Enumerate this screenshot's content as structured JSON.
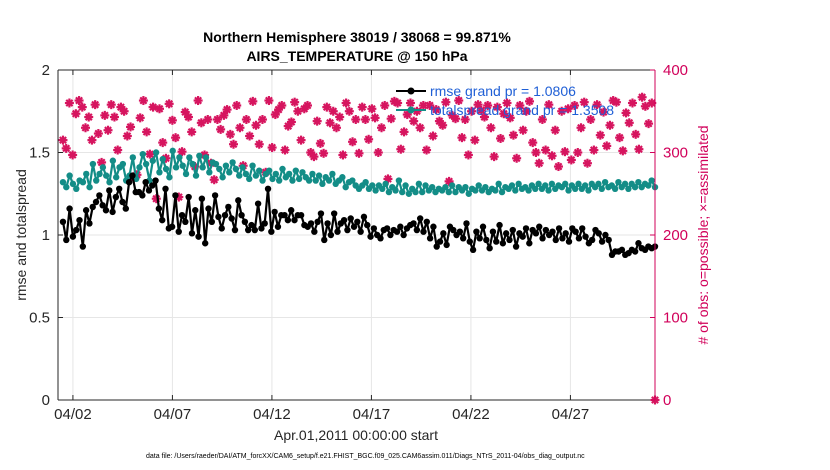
{
  "chart_data": {
    "type": "line",
    "title": "Northern Hemisphere 38019 / 38068 = 99.871%",
    "subtitle": "AIRS_TEMPERATURE @ 150 hPa",
    "xlabel": "Apr.01,2011 00:00:00 start",
    "ylabel_left": "rmse and totalspread",
    "ylabel_right": "# of obs: o=possible; ×=assimilated",
    "ylim_left": [
      0,
      2
    ],
    "ylim_right": [
      0,
      400
    ],
    "yticks_left": [
      "0",
      "0.5",
      "1",
      "1.5",
      "2"
    ],
    "yticks_right": [
      "0",
      "100",
      "200",
      "300",
      "400"
    ],
    "xticks": [
      {
        "day": 1.5,
        "label": "04/02"
      },
      {
        "day": 6.5,
        "label": "04/07"
      },
      {
        "day": 11.5,
        "label": "04/12"
      },
      {
        "day": 16.5,
        "label": "04/17"
      },
      {
        "day": 21.5,
        "label": "04/22"
      },
      {
        "day": 26.5,
        "label": "04/27"
      }
    ],
    "xlim_days": [
      0.75,
      30.75
    ],
    "grid": true,
    "legend_position": "top-right",
    "colors": {
      "rmse": "#000000",
      "spread": "#138d87",
      "obs": "#d6155f",
      "right_axis": "#d1005a",
      "legend_text": "#1f5fd6"
    },
    "series": [
      {
        "name": "rmse grand pr = 1.0806",
        "axis": "left",
        "marker": "filled-circle",
        "values": [
          1.08,
          0.97,
          1.16,
          0.99,
          1.03,
          1.09,
          0.93,
          1.15,
          1.07,
          1.17,
          1.2,
          1.24,
          1.18,
          1.15,
          1.27,
          1.14,
          1.23,
          1.28,
          1.2,
          1.16,
          1.32,
          1.36,
          1.26,
          1.26,
          1.24,
          1.32,
          1.27,
          1.3,
          1.33,
          1.16,
          1.09,
          1.28,
          1.04,
          1.05,
          1.24,
          1.02,
          1.12,
          1.08,
          1.23,
          1.01,
          1.15,
          0.99,
          1.22,
          0.95,
          1.16,
          1.08,
          1.24,
          1.11,
          1.04,
          1.12,
          1.17,
          1.1,
          1.03,
          1.21,
          1.12,
          1.08,
          1.03,
          1.06,
          1.03,
          1.19,
          1.04,
          1.07,
          1.28,
          1.02,
          1.14,
          1.05,
          1.12,
          1.12,
          1.09,
          1.15,
          1.09,
          1.12,
          1.12,
          1.06,
          1.05,
          1.07,
          1.02,
          1.08,
          1.13,
          0.97,
          1.07,
          1.0,
          1.13,
          1.02,
          1.07,
          1.09,
          1.03,
          1.1,
          1.05,
          1.08,
          1.02,
          1.11,
          1.06,
          0.99,
          1.04,
          1.0,
          0.98,
          1.03,
          1.04,
          1.0,
          1.03,
          1.02,
          1.05,
          1.0,
          1.04,
          1.06,
          1.07,
          1.03,
          1.1,
          1.02,
          1.08,
          0.98,
          1.05,
          0.93,
          0.96,
          1.01,
          0.94,
          1.05,
          1.03,
          1.0,
          1.02,
          0.98,
          1.07,
          0.96,
          0.91,
          1.02,
          0.98,
          1.05,
          0.97,
          0.92,
          1.02,
          0.96,
          1.06,
          0.95,
          1.01,
          0.97,
          1.03,
          0.93,
          1.01,
          0.99,
          1.04,
          0.95,
          1.03,
          1.01,
          1.05,
          0.98,
          1.03,
          1.0,
          1.02,
          0.97,
          1.04,
          0.98,
          1.01,
          0.96,
          1.04,
          1.02,
          0.98,
          1.04,
          0.99,
          0.95,
          0.97,
          1.03,
          1.01,
          0.96,
          1.0,
          0.97,
          0.88,
          0.9,
          0.9,
          0.91,
          0.88,
          0.89,
          0.91,
          0.9,
          0.95,
          0.92,
          0.91,
          0.93,
          0.92,
          0.93
        ]
      },
      {
        "name": "totalspread grand pr = 1.3508",
        "axis": "left",
        "marker": "filled-circle",
        "values": [
          1.32,
          1.29,
          1.36,
          1.31,
          1.28,
          1.33,
          1.32,
          1.37,
          1.29,
          1.43,
          1.33,
          1.37,
          1.41,
          1.36,
          1.32,
          1.45,
          1.35,
          1.41,
          1.43,
          1.33,
          1.36,
          1.47,
          1.34,
          1.41,
          1.49,
          1.43,
          1.33,
          1.45,
          1.5,
          1.38,
          1.46,
          1.4,
          1.35,
          1.51,
          1.41,
          1.47,
          1.42,
          1.37,
          1.47,
          1.43,
          1.36,
          1.48,
          1.41,
          1.47,
          1.38,
          1.44,
          1.43,
          1.4,
          1.35,
          1.42,
          1.38,
          1.44,
          1.4,
          1.36,
          1.41,
          1.37,
          1.34,
          1.42,
          1.36,
          1.39,
          1.33,
          1.37,
          1.39,
          1.34,
          1.37,
          1.33,
          1.4,
          1.35,
          1.37,
          1.33,
          1.39,
          1.34,
          1.38,
          1.35,
          1.33,
          1.37,
          1.33,
          1.36,
          1.31,
          1.35,
          1.33,
          1.37,
          1.31,
          1.33,
          1.35,
          1.29,
          1.32,
          1.33,
          1.3,
          1.28,
          1.3,
          1.32,
          1.28,
          1.3,
          1.27,
          1.3,
          1.28,
          1.31,
          1.26,
          1.29,
          1.27,
          1.33,
          1.26,
          1.3,
          1.25,
          1.28,
          1.26,
          1.31,
          1.26,
          1.3,
          1.27,
          1.29,
          1.26,
          1.28,
          1.27,
          1.29,
          1.26,
          1.3,
          1.26,
          1.29,
          1.27,
          1.29,
          1.25,
          1.28,
          1.27,
          1.3,
          1.27,
          1.29,
          1.26,
          1.28,
          1.27,
          1.31,
          1.26,
          1.29,
          1.28,
          1.3,
          1.27,
          1.31,
          1.28,
          1.29,
          1.27,
          1.3,
          1.28,
          1.31,
          1.28,
          1.3,
          1.27,
          1.31,
          1.28,
          1.3,
          1.29,
          1.31,
          1.27,
          1.3,
          1.28,
          1.31,
          1.28,
          1.3,
          1.27,
          1.31,
          1.29,
          1.31,
          1.28,
          1.32,
          1.29,
          1.3,
          1.28,
          1.32,
          1.29,
          1.31,
          1.28,
          1.31,
          1.29,
          1.32,
          1.29,
          1.31,
          1.3,
          1.33,
          1.29
        ]
      },
      {
        "name": "# of obs: o=possible; ×=assimilated",
        "axis": "right",
        "marker": "star",
        "values": [
          315,
          305,
          360,
          297,
          347,
          363,
          355,
          330,
          343,
          315,
          358,
          323,
          288,
          345,
          327,
          358,
          343,
          303,
          355,
          350,
          320,
          331,
          269,
          273,
          342,
          363,
          325,
          298,
          355,
          244,
          353,
          312,
          293,
          359,
          339,
          318,
          246,
          301,
          349,
          343,
          325,
          283,
          363,
          336,
          297,
          340,
          287,
          267,
          340,
          328,
          345,
          352,
          322,
          310,
          357,
          330,
          284,
          340,
          320,
          362,
          333,
          310,
          340,
          276,
          363,
          306,
          346,
          352,
          357,
          303,
          332,
          337,
          361,
          350,
          315,
          353,
          357,
          300,
          295,
          338,
          311,
          299,
          355,
          336,
          350,
          330,
          343,
          297,
          360,
          350,
          313,
          340,
          299,
          355,
          340,
          316,
          353,
          342,
          300,
          330,
          357,
          268,
          341,
          362,
          360,
          304,
          325,
          346,
          360,
          338,
          350,
          330,
          357,
          303,
          357,
          320,
          352,
          338,
          333,
          361,
          265,
          345,
          341,
          363,
          318,
          340,
          297,
          350,
          315,
          358,
          351,
          343,
          357,
          330,
          295,
          355,
          317,
          347,
          360,
          342,
          321,
          293,
          357,
          327,
          350,
          362,
          312,
          300,
          287,
          340,
          303,
          358,
          296,
          327,
          283,
          350,
          301,
          353,
          291,
          357,
          300,
          330,
          361,
          287,
          340,
          303,
          358,
          321,
          349,
          308,
          333,
          363,
          361,
          318,
          302,
          348,
          336,
          360,
          322,
          304,
          367,
          356,
          335,
          360,
          0
        ]
      }
    ]
  },
  "footer": {
    "data_file": "data file: /Users/raeder/DAI/ATM_forcXX/CAM6_setup/f.e21.FHIST_BGC.f09_025.CAM6assim.011/Diags_NTrS_2011-04/obs_diag_output.nc"
  }
}
